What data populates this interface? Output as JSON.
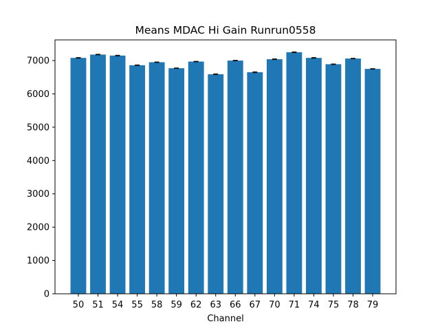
{
  "chart_data": {
    "type": "bar",
    "title": "Means MDAC Hi Gain Runrun0558",
    "xlabel": "Channel",
    "ylabel": "",
    "categories": [
      "50",
      "51",
      "54",
      "55",
      "58",
      "59",
      "62",
      "63",
      "66",
      "67",
      "70",
      "71",
      "74",
      "75",
      "78",
      "79"
    ],
    "values": [
      7080,
      7180,
      7150,
      6860,
      6950,
      6770,
      6970,
      6590,
      7000,
      6650,
      7040,
      7250,
      7080,
      6890,
      7060,
      6750
    ],
    "errors": [
      10,
      10,
      10,
      10,
      8,
      8,
      8,
      12,
      8,
      14,
      10,
      12,
      10,
      8,
      8,
      8
    ],
    "yticks": [
      0,
      1000,
      2000,
      3000,
      4000,
      5000,
      6000,
      7000
    ],
    "ylim": [
      0,
      7620
    ],
    "grid": false,
    "colors": {
      "bar": "#1f77b4",
      "error": "#000000",
      "axes": "#000000"
    }
  }
}
